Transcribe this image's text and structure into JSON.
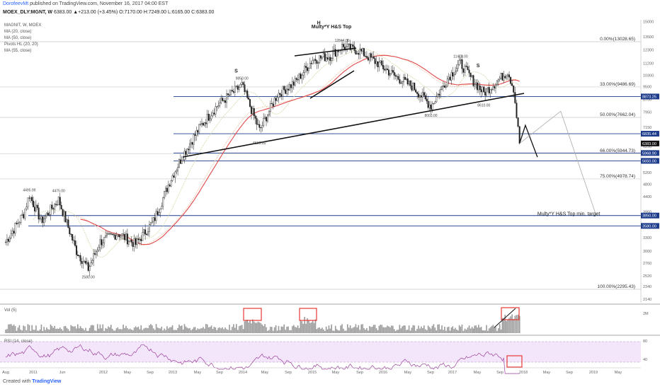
{
  "header": {
    "author": "DorofeevMt",
    "published": " published on TradingView.com, November 16, 2017 04:00 EST",
    "symbol": "MOEX_DLY:MGNT, W",
    "quote": "6383.00 ▲+213.00 (+3.45%) O:7170.00 H:7249.00 L:6165.00 C:6383.00"
  },
  "indicators": [
    "MAGNIT, W, MOEX",
    "MA (20, close)",
    "MA (50, close)",
    "Pivots HL (20, 20)",
    "MA (55, close)"
  ],
  "footer": {
    "created_with": "Created with",
    "brand": "TradingView"
  },
  "colors": {
    "up": "#222222",
    "down": "#222222",
    "ma55": "#e0484a",
    "ma20": "#d6d6a8",
    "ma50": "#f0c7a8",
    "rsi": "#9b3f9b",
    "rsi_band": "#f3e6fa",
    "level": "#1e3c8c",
    "arrow": "#555555",
    "box": "#e53935"
  },
  "chart_data": [
    {
      "type": "candlestick",
      "title": "Multy*Y H&S Top",
      "y_scale": "log",
      "ylim": [
        1900,
        16000
      ],
      "x_range": [
        "2010-08",
        "2019-07"
      ],
      "x_ticks": [
        "Aug",
        "2011",
        "Jun",
        "2012",
        "May",
        "Sep",
        "2013",
        "May",
        "Sep",
        "2014",
        "May",
        "Sep",
        "2015",
        "May",
        "Sep",
        "2016",
        "May",
        "Sep",
        "2017",
        "May",
        "Sep",
        "2018",
        "May",
        "Sep",
        "2019",
        "May"
      ],
      "y_ticks": [
        2140,
        2340,
        2520,
        2760,
        3000,
        3300,
        3600,
        3950,
        4400,
        4800,
        5200,
        5700,
        6250,
        6850,
        7150,
        7950,
        8700,
        9500,
        10300,
        11200,
        12300,
        13500,
        15000
      ],
      "fib_levels": [
        {
          "label": "0.00%(13028.65)",
          "value": 13028.65
        },
        {
          "label": "33.00%(9486.69)",
          "value": 9486.69
        },
        {
          "label": "50.00%(7662.04)",
          "value": 7662.04
        },
        {
          "label": "66.00%(5944.73)",
          "value": 5944.73
        },
        {
          "label": "75.00%(4978.74)",
          "value": 4978.74
        },
        {
          "label": "100.00%(2295.43)",
          "value": 2295.43
        }
      ],
      "horizontal_levels": [
        {
          "label": "8873.25",
          "value": 8873.25
        },
        {
          "label": "6835.44",
          "value": 6835.44
        },
        {
          "label": "5968.90",
          "value": 5968.9
        },
        {
          "label": "5650.00",
          "value": 5650.0
        },
        {
          "label": "3850.00",
          "value": 3850.0
        },
        {
          "label": "3580.00",
          "value": 3580.0
        }
      ],
      "last_price": {
        "label": "6383.00",
        "value": 6383.0
      },
      "pivots": [
        {
          "date": "2010-12",
          "label": "4495.99",
          "value": 4495.99,
          "pos": "high"
        },
        {
          "date": "2011-05",
          "label": "4475.00",
          "value": 4475.0,
          "pos": "high"
        },
        {
          "date": "2011-10",
          "label": "2580.00",
          "value": 2580.0,
          "pos": "low"
        },
        {
          "date": "2013-12",
          "label": "9850.00",
          "value": 9850.0,
          "pos": "high"
        },
        {
          "date": "2014-03",
          "label": "6595.00",
          "value": 6595.0,
          "pos": "low"
        },
        {
          "date": "2015-05",
          "label": "12844.00",
          "value": 12844.0,
          "pos": "high"
        },
        {
          "date": "2016-08",
          "label": "8003.00",
          "value": 8003.0,
          "pos": "low"
        },
        {
          "date": "2017-01",
          "label": "11478.00",
          "value": 11478.0,
          "pos": "high"
        },
        {
          "date": "2017-05",
          "label": "8610.00",
          "value": 8610.0,
          "pos": "low"
        }
      ],
      "annotations": [
        {
          "text": "S",
          "date": "2013-11",
          "value": 10500
        },
        {
          "text": "H",
          "date": "2015-01",
          "value": 14700
        },
        {
          "text": "S",
          "date": "2017-04",
          "value": 10900
        },
        {
          "text": "Multy*Y H&S Top min. target",
          "date": "2018-02",
          "value": 3850
        }
      ],
      "price_series": [
        {
          "date": "2010-08",
          "value": 3200
        },
        {
          "date": "2010-11",
          "value": 3900
        },
        {
          "date": "2010-12",
          "value": 4450
        },
        {
          "date": "2011-02",
          "value": 3700
        },
        {
          "date": "2011-05",
          "value": 4300
        },
        {
          "date": "2011-08",
          "value": 3000
        },
        {
          "date": "2011-10",
          "value": 2650
        },
        {
          "date": "2011-12",
          "value": 3200
        },
        {
          "date": "2012-03",
          "value": 3400
        },
        {
          "date": "2012-06",
          "value": 3150
        },
        {
          "date": "2012-09",
          "value": 3700
        },
        {
          "date": "2012-12",
          "value": 5000
        },
        {
          "date": "2013-02",
          "value": 5900
        },
        {
          "date": "2013-05",
          "value": 7200
        },
        {
          "date": "2013-08",
          "value": 8400
        },
        {
          "date": "2013-12",
          "value": 9600
        },
        {
          "date": "2014-03",
          "value": 7000
        },
        {
          "date": "2014-06",
          "value": 9000
        },
        {
          "date": "2014-09",
          "value": 9800
        },
        {
          "date": "2014-12",
          "value": 11500
        },
        {
          "date": "2015-03",
          "value": 11800
        },
        {
          "date": "2015-05",
          "value": 12600
        },
        {
          "date": "2015-08",
          "value": 12200
        },
        {
          "date": "2015-11",
          "value": 11200
        },
        {
          "date": "2016-02",
          "value": 10200
        },
        {
          "date": "2016-05",
          "value": 9500
        },
        {
          "date": "2016-08",
          "value": 8300
        },
        {
          "date": "2016-11",
          "value": 10200
        },
        {
          "date": "2017-01",
          "value": 11200
        },
        {
          "date": "2017-03",
          "value": 10000
        },
        {
          "date": "2017-05",
          "value": 9100
        },
        {
          "date": "2017-07",
          "value": 9800
        },
        {
          "date": "2017-09",
          "value": 10600
        },
        {
          "date": "2017-10",
          "value": 9400
        },
        {
          "date": "2017-11",
          "value": 6383
        }
      ],
      "projection": [
        {
          "date": "2017-11",
          "value": 6383
        },
        {
          "date": "2017-12",
          "value": 7250
        },
        {
          "date": "2018-02",
          "value": 5800
        }
      ],
      "target_projection": [
        {
          "date": "2017-11",
          "value": 6383
        },
        {
          "date": "2018-06",
          "value": 8000
        },
        {
          "date": "2018-12",
          "value": 3850
        }
      ]
    },
    {
      "type": "bar",
      "title": "Vol (5)",
      "y_ticks": [
        "2M"
      ],
      "note": "volume bars"
    },
    {
      "type": "line",
      "title": "RSI (14, close)",
      "ylim": [
        20,
        80
      ],
      "y_ticks": [
        80,
        40
      ],
      "band": [
        30,
        70
      ]
    }
  ]
}
